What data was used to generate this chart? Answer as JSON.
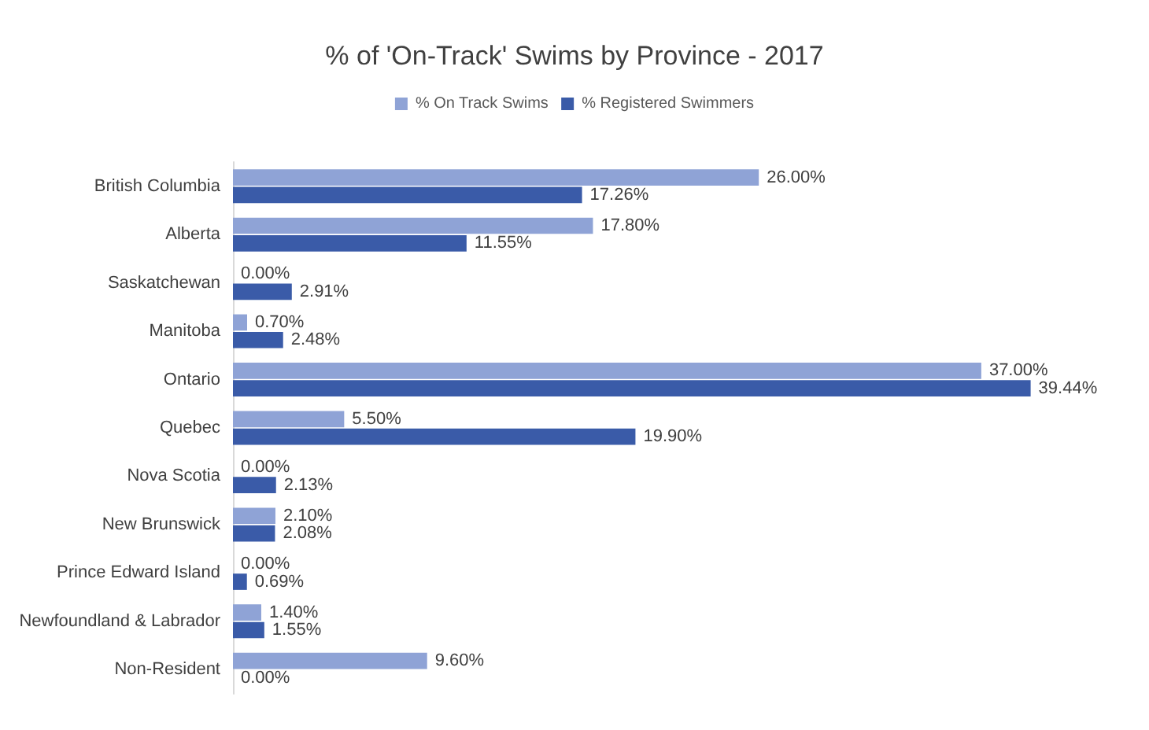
{
  "chart_data": {
    "type": "bar",
    "orientation": "horizontal",
    "title": "% of 'On-Track' Swims by Province - 2017",
    "categories": [
      "British Columbia",
      "Alberta",
      "Saskatchewan",
      "Manitoba",
      "Ontario",
      "Quebec",
      "Nova Scotia",
      "New Brunswick",
      "Prince Edward Island",
      "Newfoundland & Labrador",
      "Non-Resident"
    ],
    "series": [
      {
        "name": "% On Track Swims",
        "color": "#8fa3d6",
        "values": [
          26,
          17.8,
          0,
          0.7,
          37,
          5.5,
          0,
          2.1,
          0,
          1.4,
          9.6
        ],
        "value_labels": [
          "26.00%",
          "17.80%",
          "0.00%",
          "0.70%",
          "37.00%",
          "5.50%",
          "0.00%",
          "2.10%",
          "0.00%",
          "1.40%",
          "9.60%"
        ]
      },
      {
        "name": "% Registered Swimmers",
        "color": "#3a5ba8",
        "values": [
          17.26,
          11.55,
          2.91,
          2.48,
          39.44,
          19.9,
          2.13,
          2.08,
          0.69,
          1.55,
          0
        ],
        "value_labels": [
          "17.26%",
          "11.55%",
          "2.91%",
          "2.48%",
          "39.44%",
          "19.90%",
          "2.13%",
          "2.08%",
          "0.69%",
          "1.55%",
          "0.00%"
        ]
      }
    ],
    "legend": "top",
    "grid": false,
    "tick_labels": "y"
  }
}
